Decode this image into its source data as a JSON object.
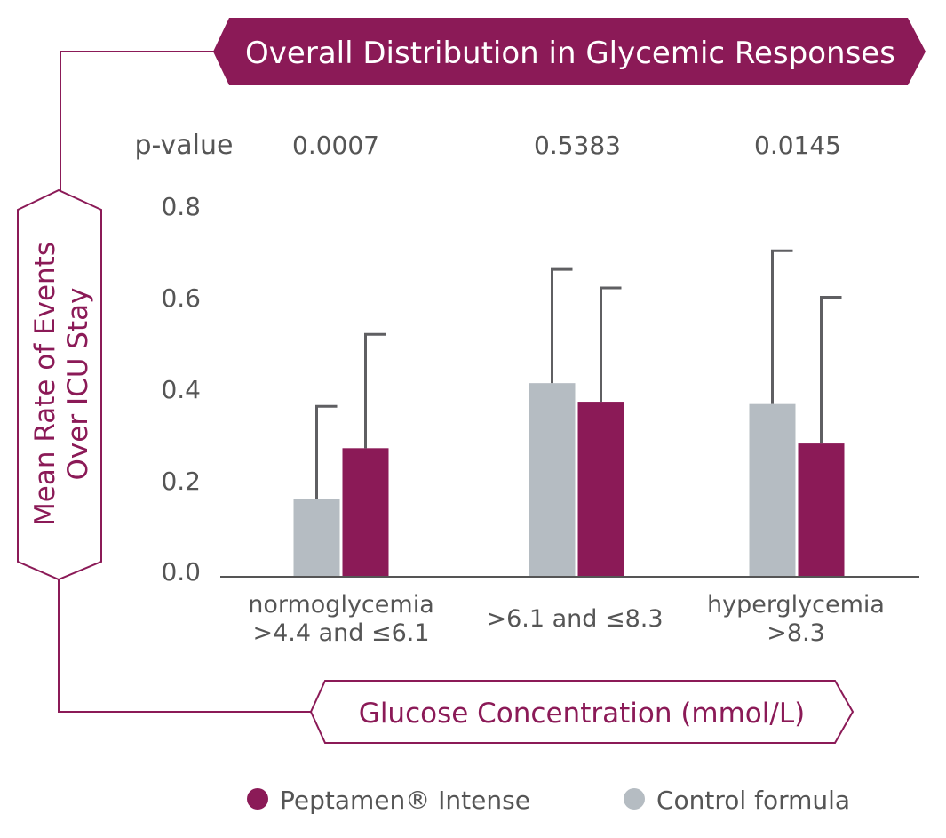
{
  "colors": {
    "peptamen": "#8B1A57",
    "control": "#B5BCC2",
    "error_bar": "#5F5F62",
    "axis": "#555555",
    "text": "#555555",
    "banner_text": "#ffffff",
    "outline": "#8B1A57"
  },
  "chart_data": {
    "type": "bar",
    "title": "Overall Distribution in Glycemic Responses",
    "xlabel": "Glucose Concentration (mmol/L)",
    "ylabel": [
      "Mean Rate of Events",
      "Over ICU Stay"
    ],
    "ylim": [
      0,
      0.8
    ],
    "yticks": [
      "0.8",
      "0.6",
      "0.4",
      "0.2",
      "0.0"
    ],
    "ytick_values": [
      0.8,
      0.6,
      0.4,
      0.2,
      0.0
    ],
    "pvalue_label": "p-value",
    "categories": [
      {
        "lines": [
          "normoglycemia",
          ">4.4 and ≤6.1"
        ],
        "pvalue": "0.0007"
      },
      {
        "lines": [
          ">6.1 and ≤8.3"
        ],
        "pvalue": "0.5383"
      },
      {
        "lines": [
          "hyperglycemia",
          ">8.3"
        ],
        "pvalue": "0.0145"
      }
    ],
    "series": [
      {
        "name": "Control formula",
        "key": "control",
        "values": [
          0.165,
          0.415,
          0.37
        ],
        "error_upper": [
          0.365,
          0.66,
          0.7
        ]
      },
      {
        "name": "Peptamen® Intense",
        "key": "peptamen",
        "values": [
          0.275,
          0.375,
          0.285
        ],
        "error_upper": [
          0.52,
          0.62,
          0.6
        ]
      }
    ],
    "legend": [
      {
        "label": "Peptamen® Intense",
        "key": "peptamen"
      },
      {
        "label": "Control formula",
        "key": "control"
      }
    ],
    "grid": false,
    "legend_position": "bottom"
  }
}
